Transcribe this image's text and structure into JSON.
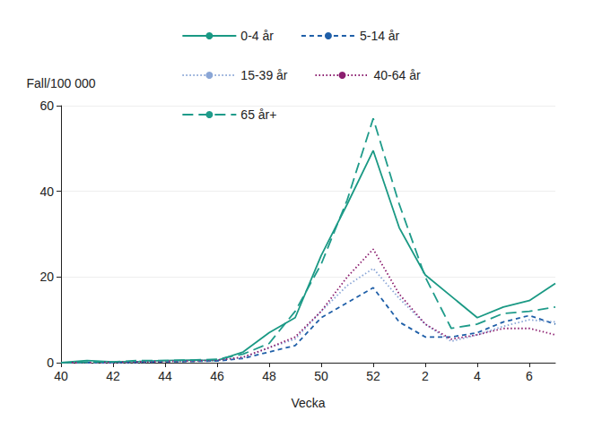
{
  "chart_data": {
    "type": "line",
    "x_label": "Vecka",
    "y_label": "Fall/100 000",
    "categories": [
      "40",
      null,
      "42",
      null,
      "44",
      null,
      "46",
      null,
      "48",
      null,
      "50",
      null,
      "52",
      null,
      "2",
      null,
      "4",
      null,
      "6",
      null
    ],
    "series": [
      {
        "name": "0-4 år",
        "color": "#1a9984",
        "line_style": "solid",
        "values": [
          0,
          0.5,
          0.2,
          0.3,
          0.5,
          0.6,
          0.5,
          2.5,
          7,
          10.5,
          25,
          37,
          49.5,
          31.5,
          20.5,
          15.5,
          10.5,
          13,
          14.5,
          18.5
        ]
      },
      {
        "name": "5-14 år",
        "color": "#1f5fa8",
        "line_style": "dashed",
        "values": [
          0,
          0,
          0,
          0.1,
          0.2,
          0.3,
          0.4,
          1,
          2.5,
          4,
          10.5,
          14,
          17.5,
          9.5,
          6,
          6,
          7,
          9.5,
          11,
          9
        ]
      },
      {
        "name": "15-39 år",
        "color": "#8aa6d6",
        "line_style": "dotted",
        "values": [
          0,
          0,
          0,
          0.1,
          0.3,
          0.4,
          0.6,
          1.2,
          3.5,
          5.5,
          12,
          18,
          22,
          15,
          9,
          5,
          6.5,
          8.5,
          10,
          9.5
        ]
      },
      {
        "name": "40-64 år",
        "color": "#8b1e6f",
        "line_style": "dotted",
        "values": [
          0,
          0,
          0.1,
          0.2,
          0.3,
          0.4,
          0.6,
          1.3,
          3.5,
          6,
          12,
          20,
          26.5,
          16,
          9,
          5.5,
          6.5,
          8,
          8,
          6.5
        ]
      },
      {
        "name": "65 år+",
        "color": "#1f9b8a",
        "line_style": "longdash",
        "values": [
          0,
          0.1,
          0.2,
          0.5,
          0.5,
          0.6,
          0.8,
          2,
          4.5,
          12,
          23,
          38,
          57,
          37,
          20,
          8,
          9,
          11.5,
          12,
          13
        ]
      }
    ],
    "ylim": [
      0,
      60
    ],
    "yticks": [
      0,
      20,
      40,
      60
    ],
    "grid": true,
    "legend": "top"
  }
}
